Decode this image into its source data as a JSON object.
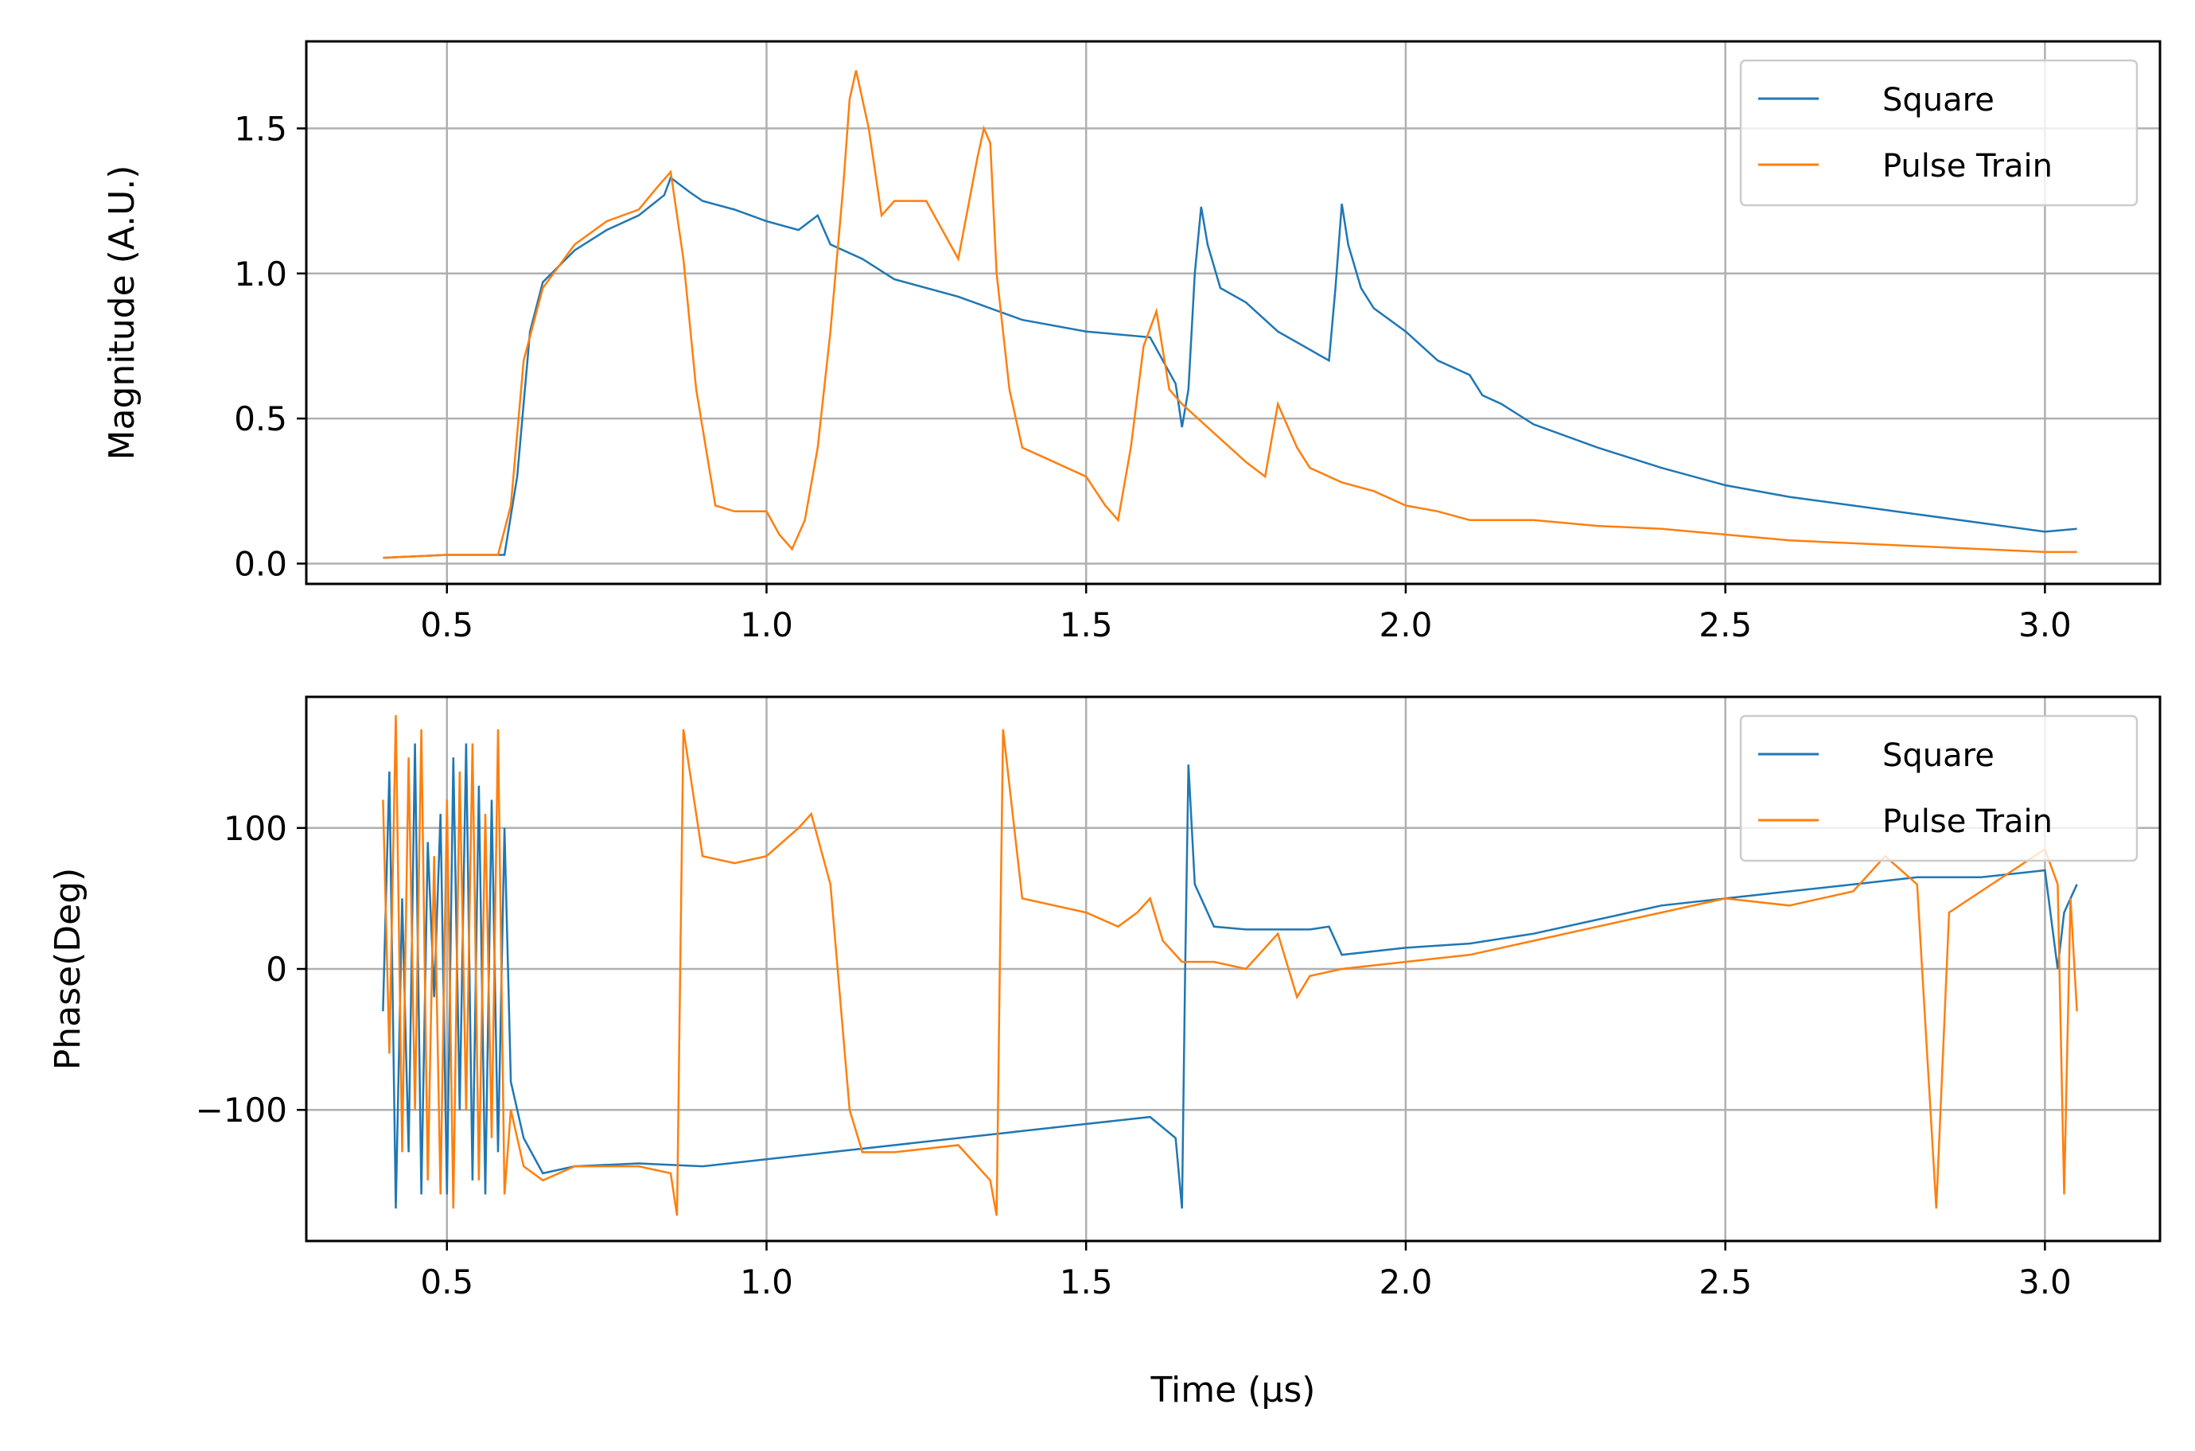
{
  "chart_data": [
    {
      "type": "line",
      "xlim": [
        0.28,
        3.18
      ],
      "ylim": [
        -0.07,
        1.8
      ],
      "xticks": [
        "0.5",
        "1.0",
        "1.5",
        "2.0",
        "2.5",
        "3.0"
      ],
      "yticks": [
        "0.0",
        "0.5",
        "1.0",
        "1.5"
      ],
      "xlabel": "",
      "ylabel": "Magnitude (A.U.)",
      "grid": true,
      "legend_position": "top-right",
      "series": [
        {
          "name": "Square",
          "color": "#1f77b4",
          "x": [
            0.4,
            0.5,
            0.59,
            0.61,
            0.63,
            0.65,
            0.7,
            0.75,
            0.8,
            0.84,
            0.85,
            0.88,
            0.9,
            0.95,
            1.0,
            1.05,
            1.08,
            1.1,
            1.15,
            1.2,
            1.3,
            1.4,
            1.5,
            1.6,
            1.64,
            1.65,
            1.66,
            1.67,
            1.68,
            1.69,
            1.71,
            1.75,
            1.8,
            1.88,
            1.89,
            1.9,
            1.91,
            1.93,
            1.95,
            2.0,
            2.05,
            2.1,
            2.12,
            2.15,
            2.2,
            2.3,
            2.4,
            2.5,
            2.6,
            2.7,
            2.8,
            2.9,
            3.0,
            3.05
          ],
          "y": [
            0.02,
            0.03,
            0.03,
            0.3,
            0.8,
            0.97,
            1.08,
            1.15,
            1.2,
            1.27,
            1.33,
            1.28,
            1.25,
            1.22,
            1.18,
            1.15,
            1.2,
            1.1,
            1.05,
            0.98,
            0.92,
            0.84,
            0.8,
            0.78,
            0.62,
            0.47,
            0.6,
            1.0,
            1.23,
            1.1,
            0.95,
            0.9,
            0.8,
            0.7,
            0.95,
            1.24,
            1.1,
            0.95,
            0.88,
            0.8,
            0.7,
            0.65,
            0.58,
            0.55,
            0.48,
            0.4,
            0.33,
            0.27,
            0.23,
            0.2,
            0.17,
            0.14,
            0.11,
            0.12
          ]
        },
        {
          "name": "Pulse Train",
          "color": "#ff7f0e",
          "x": [
            0.4,
            0.5,
            0.58,
            0.6,
            0.62,
            0.65,
            0.7,
            0.75,
            0.8,
            0.83,
            0.85,
            0.87,
            0.89,
            0.92,
            0.95,
            1.0,
            1.02,
            1.04,
            1.06,
            1.08,
            1.1,
            1.12,
            1.13,
            1.14,
            1.16,
            1.18,
            1.2,
            1.25,
            1.3,
            1.33,
            1.34,
            1.35,
            1.36,
            1.38,
            1.4,
            1.45,
            1.5,
            1.53,
            1.55,
            1.57,
            1.59,
            1.61,
            1.63,
            1.65,
            1.7,
            1.75,
            1.78,
            1.8,
            1.83,
            1.85,
            1.9,
            1.95,
            2.0,
            2.05,
            2.1,
            2.2,
            2.3,
            2.4,
            2.5,
            2.6,
            2.7,
            2.8,
            2.9,
            3.0,
            3.05
          ],
          "y": [
            0.02,
            0.03,
            0.03,
            0.2,
            0.7,
            0.95,
            1.1,
            1.18,
            1.22,
            1.3,
            1.35,
            1.05,
            0.6,
            0.2,
            0.18,
            0.18,
            0.1,
            0.05,
            0.15,
            0.4,
            0.8,
            1.3,
            1.6,
            1.7,
            1.5,
            1.2,
            1.25,
            1.25,
            1.05,
            1.4,
            1.5,
            1.45,
            1.0,
            0.6,
            0.4,
            0.35,
            0.3,
            0.2,
            0.15,
            0.4,
            0.75,
            0.87,
            0.6,
            0.55,
            0.45,
            0.35,
            0.3,
            0.55,
            0.4,
            0.33,
            0.28,
            0.25,
            0.2,
            0.18,
            0.15,
            0.15,
            0.13,
            0.12,
            0.1,
            0.08,
            0.07,
            0.06,
            0.05,
            0.04,
            0.04
          ]
        }
      ]
    },
    {
      "type": "line",
      "xlim": [
        0.28,
        3.18
      ],
      "ylim": [
        -193,
        193
      ],
      "xticks": [
        "0.5",
        "1.0",
        "1.5",
        "2.0",
        "2.5",
        "3.0"
      ],
      "yticks": [
        "100",
        "0",
        "−100"
      ],
      "xlabel": "Time (μs)",
      "ylabel": "Phase(Deg)",
      "grid": true,
      "legend_position": "top-right",
      "series": [
        {
          "name": "Square",
          "color": "#1f77b4",
          "x": [
            0.4,
            0.41,
            0.42,
            0.43,
            0.44,
            0.45,
            0.46,
            0.47,
            0.48,
            0.49,
            0.5,
            0.51,
            0.52,
            0.53,
            0.54,
            0.55,
            0.56,
            0.57,
            0.58,
            0.59,
            0.6,
            0.62,
            0.65,
            0.7,
            0.8,
            0.9,
            1.0,
            1.1,
            1.2,
            1.3,
            1.4,
            1.5,
            1.6,
            1.64,
            1.65,
            1.655,
            1.66,
            1.67,
            1.7,
            1.75,
            1.85,
            1.88,
            1.9,
            2.0,
            2.1,
            2.2,
            2.3,
            2.4,
            2.5,
            2.6,
            2.7,
            2.8,
            2.9,
            3.0,
            3.02,
            3.03,
            3.05
          ],
          "y": [
            -30,
            140,
            -170,
            50,
            -130,
            160,
            -160,
            90,
            -20,
            110,
            -160,
            150,
            -100,
            160,
            -150,
            130,
            -160,
            120,
            -130,
            100,
            -80,
            -120,
            -145,
            -140,
            -138,
            -140,
            -135,
            -130,
            -125,
            -120,
            -115,
            -110,
            -105,
            -120,
            -170,
            0,
            145,
            60,
            30,
            28,
            28,
            30,
            10,
            15,
            18,
            25,
            35,
            45,
            50,
            55,
            60,
            65,
            65,
            70,
            0,
            40,
            60
          ]
        },
        {
          "name": "Pulse Train",
          "color": "#ff7f0e",
          "x": [
            0.4,
            0.41,
            0.42,
            0.43,
            0.44,
            0.45,
            0.46,
            0.47,
            0.48,
            0.49,
            0.5,
            0.51,
            0.52,
            0.53,
            0.54,
            0.55,
            0.56,
            0.57,
            0.58,
            0.59,
            0.6,
            0.62,
            0.65,
            0.7,
            0.8,
            0.85,
            0.86,
            0.865,
            0.87,
            0.9,
            0.95,
            1.0,
            1.05,
            1.07,
            1.1,
            1.13,
            1.15,
            1.2,
            1.3,
            1.35,
            1.36,
            1.365,
            1.37,
            1.4,
            1.5,
            1.55,
            1.58,
            1.6,
            1.62,
            1.65,
            1.7,
            1.75,
            1.8,
            1.83,
            1.85,
            1.9,
            2.0,
            2.1,
            2.2,
            2.3,
            2.4,
            2.5,
            2.6,
            2.7,
            2.75,
            2.8,
            2.83,
            2.85,
            2.9,
            2.95,
            3.0,
            3.02,
            3.03,
            3.04,
            3.05
          ],
          "y": [
            120,
            -60,
            180,
            -130,
            150,
            -100,
            170,
            -150,
            80,
            -160,
            120,
            -170,
            140,
            -100,
            160,
            -150,
            110,
            -120,
            170,
            -160,
            -100,
            -140,
            -150,
            -140,
            -140,
            -145,
            -175,
            0,
            170,
            80,
            75,
            80,
            100,
            110,
            60,
            -100,
            -130,
            -130,
            -125,
            -150,
            -175,
            0,
            170,
            50,
            40,
            30,
            40,
            50,
            20,
            5,
            5,
            0,
            25,
            -20,
            -5,
            0,
            5,
            10,
            20,
            30,
            40,
            50,
            45,
            55,
            80,
            60,
            -170,
            40,
            55,
            70,
            85,
            60,
            -160,
            50,
            -30
          ]
        }
      ]
    }
  ]
}
